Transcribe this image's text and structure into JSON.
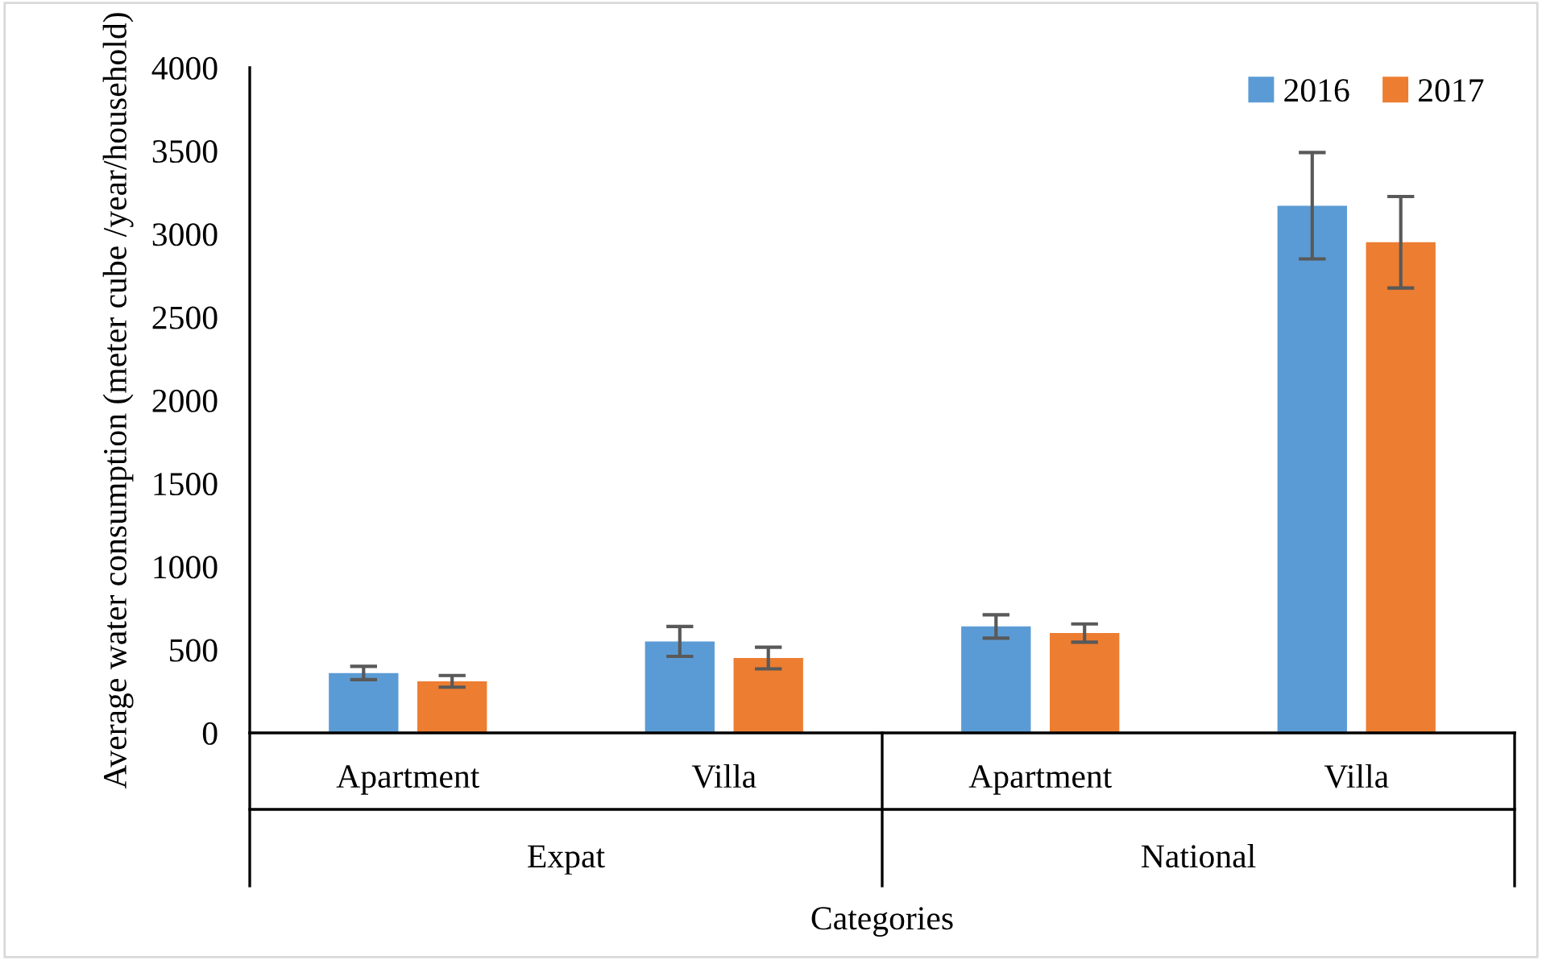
{
  "chart_data": {
    "type": "bar",
    "xlabel": "Categories",
    "ylabel": "Average water consumption (meter cube /year/household)",
    "categories": [
      "Apartment",
      "Villa",
      "Apartment",
      "Villa"
    ],
    "annotations": [
      "Expat",
      "National"
    ],
    "series": [
      {
        "name": "2016",
        "color": "#5b9bd5",
        "values": [
          360,
          550,
          640,
          3170
        ],
        "errors": [
          40,
          90,
          70,
          320
        ]
      },
      {
        "name": "2017",
        "color": "#ed7d31",
        "values": [
          310,
          450,
          600,
          2950
        ],
        "errors": [
          35,
          65,
          55,
          275
        ]
      }
    ],
    "ylim": [
      0,
      4000
    ],
    "yticks": [
      0,
      500,
      1000,
      1500,
      2000,
      2500,
      3000,
      3500,
      4000
    ],
    "grid": false,
    "legend": "top right"
  }
}
